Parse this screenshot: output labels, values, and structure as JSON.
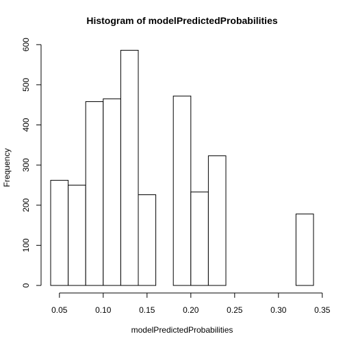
{
  "chart_data": {
    "type": "bar",
    "title": "Histogram of modelPredictedProbabilities",
    "xlabel": "modelPredictedProbabilities",
    "ylabel": "Frequency",
    "bin_width": 0.02,
    "bins": [
      {
        "start": 0.04,
        "end": 0.06,
        "count": 262
      },
      {
        "start": 0.06,
        "end": 0.08,
        "count": 250
      },
      {
        "start": 0.08,
        "end": 0.1,
        "count": 458
      },
      {
        "start": 0.1,
        "end": 0.12,
        "count": 465
      },
      {
        "start": 0.12,
        "end": 0.14,
        "count": 586
      },
      {
        "start": 0.14,
        "end": 0.16,
        "count": 226
      },
      {
        "start": 0.16,
        "end": 0.18,
        "count": 0
      },
      {
        "start": 0.18,
        "end": 0.2,
        "count": 472
      },
      {
        "start": 0.2,
        "end": 0.22,
        "count": 233
      },
      {
        "start": 0.22,
        "end": 0.24,
        "count": 323
      },
      {
        "start": 0.24,
        "end": 0.26,
        "count": 0
      },
      {
        "start": 0.26,
        "end": 0.28,
        "count": 0
      },
      {
        "start": 0.28,
        "end": 0.3,
        "count": 0
      },
      {
        "start": 0.3,
        "end": 0.32,
        "count": 0
      },
      {
        "start": 0.32,
        "end": 0.34,
        "count": 178
      }
    ],
    "xlim": [
      0.04,
      0.34
    ],
    "ylim": [
      0,
      600
    ],
    "x_ticks": [
      "0.05",
      "0.10",
      "0.15",
      "0.20",
      "0.25",
      "0.30",
      "0.35"
    ],
    "y_ticks": [
      "0",
      "100",
      "200",
      "300",
      "400",
      "500",
      "600"
    ],
    "grid": false,
    "legend": "none"
  }
}
